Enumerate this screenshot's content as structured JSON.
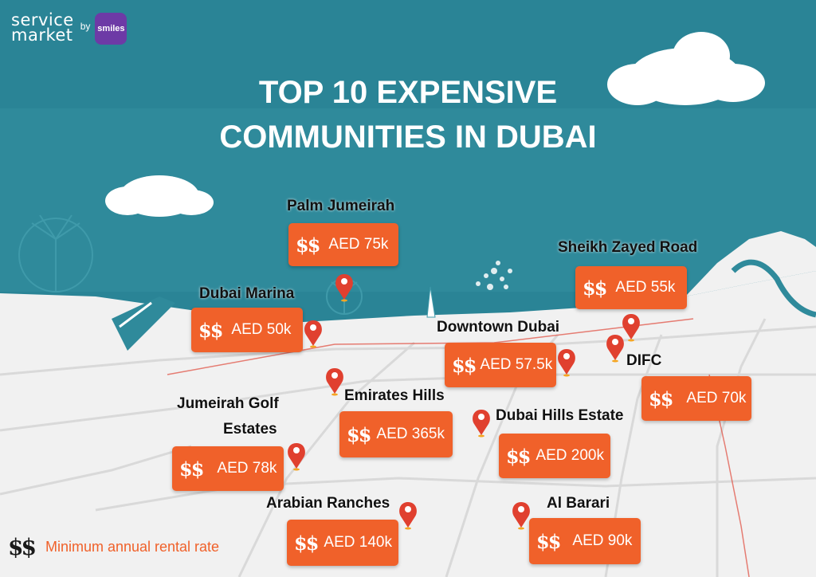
{
  "logo": {
    "line1": "service",
    "line2": "market",
    "by": "by",
    "badge": "smiles"
  },
  "title": {
    "line1": "TOP 10 EXPENSIVE",
    "line2": "COMMUNITIES IN DUBAI"
  },
  "currency_symbol": "$$",
  "colors": {
    "sea": "#2a8496",
    "land": "#f2f2f2",
    "accent": "#f0612a",
    "pin": "#e0402f"
  },
  "communities": [
    {
      "name": "Palm Jumeirah",
      "rent": "AED 75k"
    },
    {
      "name": "Sheikh Zayed Road",
      "rent": "AED 55k"
    },
    {
      "name": "Dubai Marina",
      "rent": "AED 50k"
    },
    {
      "name": "Downtown Dubai",
      "rent": "AED 57.5k"
    },
    {
      "name": "DIFC",
      "rent": "AED 70k"
    },
    {
      "name": "Emirates Hills",
      "rent": "AED 365k"
    },
    {
      "name": "Dubai Hills Estate",
      "rent": "AED 200k"
    },
    {
      "name": "Jumeirah Golf",
      "name2": "Estates",
      "rent": "AED 78k"
    },
    {
      "name": "Arabian Ranches",
      "rent": "AED 140k"
    },
    {
      "name": "Al Barari",
      "rent": "AED 90k"
    }
  ],
  "legend": {
    "text": "Minimum annual rental rate"
  }
}
